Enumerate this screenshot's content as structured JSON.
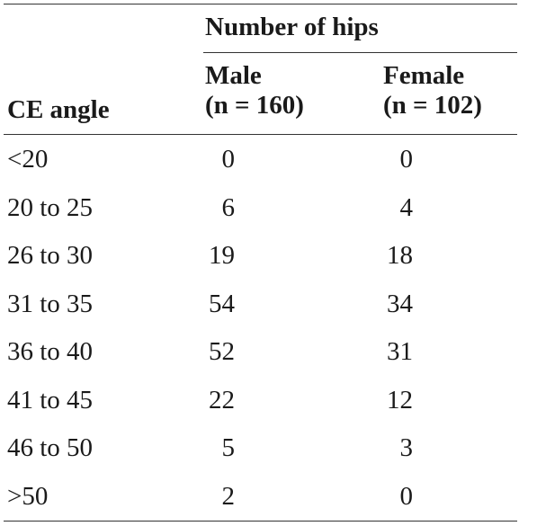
{
  "table": {
    "group_heading": "Number of hips",
    "columns": {
      "angle": "CE angle",
      "male": [
        "Male",
        "(n = 160)"
      ],
      "female": [
        "Female",
        "(n = 102)"
      ]
    },
    "rows": [
      {
        "angle": "<20",
        "male": "0",
        "female": "0"
      },
      {
        "angle": "20 to 25",
        "male": "6",
        "female": "4"
      },
      {
        "angle": "26 to 30",
        "male": "19",
        "female": "18"
      },
      {
        "angle": "31 to 35",
        "male": "54",
        "female": "34"
      },
      {
        "angle": "36 to 40",
        "male": "52",
        "female": "31"
      },
      {
        "angle": "41 to 45",
        "male": "22",
        "female": "12"
      },
      {
        "angle": "46 to 50",
        "male": "5",
        "female": "3"
      },
      {
        "angle": ">50",
        "male": "2",
        "female": "0"
      }
    ]
  }
}
